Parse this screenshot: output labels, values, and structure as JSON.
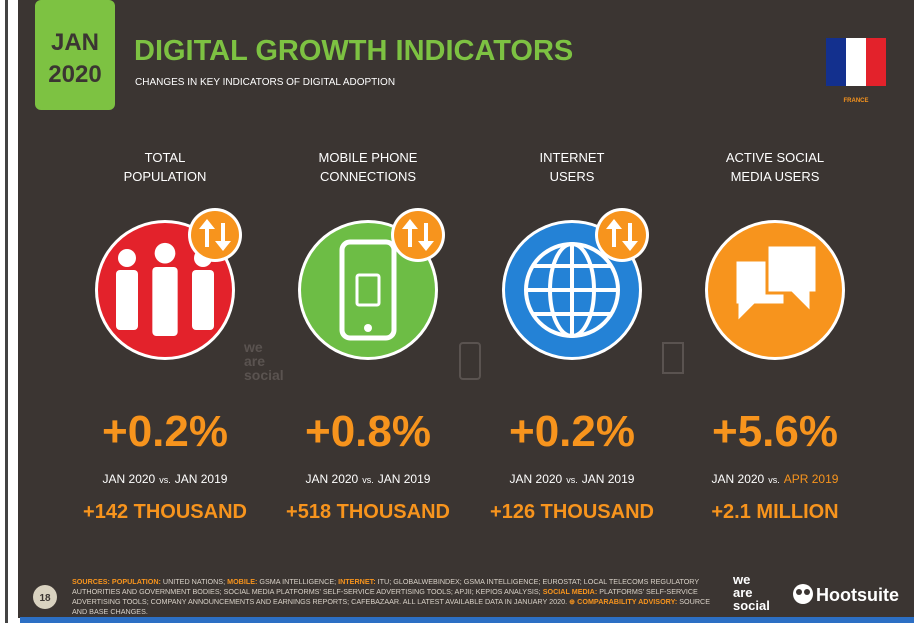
{
  "header": {
    "date_month": "JAN",
    "date_year": "2020",
    "title": "DIGITAL GROWTH INDICATORS",
    "subtitle": "CHANGES IN KEY INDICATORS OF DIGITAL ADOPTION",
    "country": "FRANCE"
  },
  "vs_label": "vs.",
  "indicators": [
    {
      "label": [
        "TOTAL",
        "POPULATION"
      ],
      "change": "+0.2%",
      "from": "JAN 2020",
      "to": "JAN 2019",
      "to_highlight": false,
      "absolute": "+142 THOUSAND",
      "color": "#e3222b"
    },
    {
      "label": [
        "MOBILE PHONE",
        "CONNECTIONS"
      ],
      "change": "+0.8%",
      "from": "JAN 2020",
      "to": "JAN 2019",
      "to_highlight": false,
      "absolute": "+518 THOUSAND",
      "color": "#6dbd45"
    },
    {
      "label": [
        "INTERNET",
        "USERS"
      ],
      "change": "+0.2%",
      "from": "JAN 2020",
      "to": "JAN 2019",
      "to_highlight": false,
      "absolute": "+126 THOUSAND",
      "color": "#2482d6"
    },
    {
      "label": [
        "ACTIVE SOCIAL",
        "MEDIA USERS"
      ],
      "change": "+5.6%",
      "from": "JAN 2020",
      "to": "APR 2019",
      "to_highlight": true,
      "absolute": "+2.1 MILLION",
      "color": "#f7941d"
    }
  ],
  "footer": {
    "page": "18",
    "sources": [
      {
        "text": "SOURCES: POPULATION:",
        "highlight": true
      },
      {
        "text": " UNITED NATIONS; ",
        "highlight": false
      },
      {
        "text": "MOBILE:",
        "highlight": true
      },
      {
        "text": " GSMA INTELLIGENCE; ",
        "highlight": false
      },
      {
        "text": "INTERNET:",
        "highlight": true
      },
      {
        "text": " ITU; GLOBALWEBINDEX; GSMA INTELLIGENCE; EUROSTAT; LOCAL TELECOMS REGULATORY AUTHORITIES AND GOVERNMENT BODIES; SOCIAL MEDIA PLATFORMS' SELF-SERVICE ADVERTISING TOOLS; APJII; KEPIOS ANALYSIS; ",
        "highlight": false
      },
      {
        "text": "SOCIAL MEDIA:",
        "highlight": true
      },
      {
        "text": " PLATFORMS' SELF-SERVICE ADVERTISING TOOLS; COMPANY ANNOUNCEMENTS AND EARNINGS REPORTS; CAFEBAZAAR. ALL LATEST AVAILABLE DATA IN JANUARY 2020. ",
        "highlight": false
      },
      {
        "text": "⊕ COMPARABILITY ADVISORY:",
        "highlight": true
      },
      {
        "text": " SOURCE AND BASE CHANGES.",
        "highlight": false
      }
    ],
    "brand_lines": [
      "we",
      "are",
      "social"
    ],
    "partner": "Hootsuite"
  }
}
